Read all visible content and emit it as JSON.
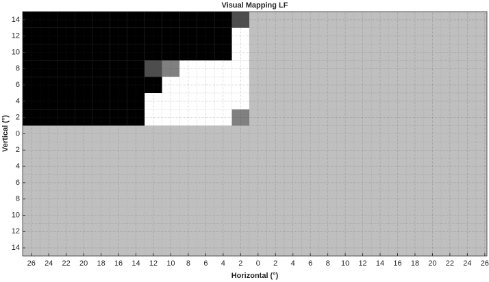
{
  "chart_data": {
    "type": "heatmap",
    "title": "Visual Mapping LF",
    "x_label": "Horizontal (°)",
    "y_label": "Vertical (°)",
    "x": [
      -26,
      -24,
      -22,
      -20,
      -18,
      -16,
      -14,
      -12,
      -10,
      -8,
      -6,
      -4,
      -2,
      0,
      2,
      4,
      6,
      8,
      10,
      12,
      14,
      16,
      18,
      20,
      22,
      24,
      26
    ],
    "y": [
      14,
      12,
      10,
      8,
      6,
      4,
      2,
      0,
      -2,
      -4,
      -6,
      -8,
      -10,
      -12,
      -14
    ],
    "colormap": "gray",
    "values": [
      [
        0,
        0,
        0,
        0,
        0,
        0,
        0,
        0,
        0,
        0,
        0,
        0,
        0.3,
        0.75,
        0.75,
        0.75,
        0.75,
        0.75,
        0.75,
        0.75,
        0.75,
        0.75,
        0.75,
        0.75,
        0.75,
        0.75,
        0.75
      ],
      [
        0,
        0,
        0,
        0,
        0,
        0,
        0,
        0,
        0,
        0,
        0,
        0,
        1,
        0.75,
        0.75,
        0.75,
        0.75,
        0.75,
        0.75,
        0.75,
        0.75,
        0.75,
        0.75,
        0.75,
        0.75,
        0.75,
        0.75
      ],
      [
        0,
        0,
        0,
        0,
        0,
        0,
        0,
        0,
        0,
        0,
        0,
        0,
        1,
        0.75,
        0.75,
        0.75,
        0.75,
        0.75,
        0.75,
        0.75,
        0.75,
        0.75,
        0.75,
        0.75,
        0.75,
        0.75,
        0.75
      ],
      [
        0,
        0,
        0,
        0,
        0,
        0,
        0,
        0.3,
        0.5,
        1,
        1,
        1,
        1,
        0.75,
        0.75,
        0.75,
        0.75,
        0.75,
        0.75,
        0.75,
        0.75,
        0.75,
        0.75,
        0.75,
        0.75,
        0.75,
        0.75
      ],
      [
        0,
        0,
        0,
        0,
        0,
        0,
        0,
        0,
        1,
        1,
        1,
        1,
        1,
        0.75,
        0.75,
        0.75,
        0.75,
        0.75,
        0.75,
        0.75,
        0.75,
        0.75,
        0.75,
        0.75,
        0.75,
        0.75,
        0.75
      ],
      [
        0,
        0,
        0,
        0,
        0,
        0,
        0,
        1,
        1,
        1,
        1,
        1,
        1,
        0.75,
        0.75,
        0.75,
        0.75,
        0.75,
        0.75,
        0.75,
        0.75,
        0.75,
        0.75,
        0.75,
        0.75,
        0.75,
        0.75
      ],
      [
        0,
        0,
        0,
        0,
        0,
        0,
        0,
        1,
        1,
        1,
        1,
        1,
        0.5,
        0.75,
        0.75,
        0.75,
        0.75,
        0.75,
        0.75,
        0.75,
        0.75,
        0.75,
        0.75,
        0.75,
        0.75,
        0.75,
        0.75
      ],
      [
        0.75,
        0.75,
        0.75,
        0.75,
        0.75,
        0.75,
        0.75,
        0.75,
        0.75,
        0.75,
        0.75,
        0.75,
        0.75,
        0.75,
        0.75,
        0.75,
        0.75,
        0.75,
        0.75,
        0.75,
        0.75,
        0.75,
        0.75,
        0.75,
        0.75,
        0.75,
        0.75
      ],
      [
        0.75,
        0.75,
        0.75,
        0.75,
        0.75,
        0.75,
        0.75,
        0.75,
        0.75,
        0.75,
        0.75,
        0.75,
        0.75,
        0.75,
        0.75,
        0.75,
        0.75,
        0.75,
        0.75,
        0.75,
        0.75,
        0.75,
        0.75,
        0.75,
        0.75,
        0.75,
        0.75
      ],
      [
        0.75,
        0.75,
        0.75,
        0.75,
        0.75,
        0.75,
        0.75,
        0.75,
        0.75,
        0.75,
        0.75,
        0.75,
        0.75,
        0.75,
        0.75,
        0.75,
        0.75,
        0.75,
        0.75,
        0.75,
        0.75,
        0.75,
        0.75,
        0.75,
        0.75,
        0.75,
        0.75
      ],
      [
        0.75,
        0.75,
        0.75,
        0.75,
        0.75,
        0.75,
        0.75,
        0.75,
        0.75,
        0.75,
        0.75,
        0.75,
        0.75,
        0.75,
        0.75,
        0.75,
        0.75,
        0.75,
        0.75,
        0.75,
        0.75,
        0.75,
        0.75,
        0.75,
        0.75,
        0.75,
        0.75
      ],
      [
        0.75,
        0.75,
        0.75,
        0.75,
        0.75,
        0.75,
        0.75,
        0.75,
        0.75,
        0.75,
        0.75,
        0.75,
        0.75,
        0.75,
        0.75,
        0.75,
        0.75,
        0.75,
        0.75,
        0.75,
        0.75,
        0.75,
        0.75,
        0.75,
        0.75,
        0.75,
        0.75
      ],
      [
        0.75,
        0.75,
        0.75,
        0.75,
        0.75,
        0.75,
        0.75,
        0.75,
        0.75,
        0.75,
        0.75,
        0.75,
        0.75,
        0.75,
        0.75,
        0.75,
        0.75,
        0.75,
        0.75,
        0.75,
        0.75,
        0.75,
        0.75,
        0.75,
        0.75,
        0.75,
        0.75
      ],
      [
        0.75,
        0.75,
        0.75,
        0.75,
        0.75,
        0.75,
        0.75,
        0.75,
        0.75,
        0.75,
        0.75,
        0.75,
        0.75,
        0.75,
        0.75,
        0.75,
        0.75,
        0.75,
        0.75,
        0.75,
        0.75,
        0.75,
        0.75,
        0.75,
        0.75,
        0.75,
        0.75
      ],
      [
        0.75,
        0.75,
        0.75,
        0.75,
        0.75,
        0.75,
        0.75,
        0.75,
        0.75,
        0.75,
        0.75,
        0.75,
        0.75,
        0.75,
        0.75,
        0.75,
        0.75,
        0.75,
        0.75,
        0.75,
        0.75,
        0.75,
        0.75,
        0.75,
        0.75,
        0.75,
        0.75
      ]
    ],
    "xlim": [
      -27,
      26.25
    ],
    "ylim": [
      -15,
      15
    ],
    "xticks": [
      {
        "value": -26,
        "label": "26"
      },
      {
        "value": -24,
        "label": "24"
      },
      {
        "value": -22,
        "label": "22"
      },
      {
        "value": -20,
        "label": "20"
      },
      {
        "value": -18,
        "label": "18"
      },
      {
        "value": -16,
        "label": "16"
      },
      {
        "value": -14,
        "label": "14"
      },
      {
        "value": -12,
        "label": "12"
      },
      {
        "value": -10,
        "label": "10"
      },
      {
        "value": -8,
        "label": "8"
      },
      {
        "value": -6,
        "label": "6"
      },
      {
        "value": -4,
        "label": "4"
      },
      {
        "value": -2,
        "label": "2"
      },
      0,
      2,
      4,
      6,
      8,
      10,
      12,
      14,
      16,
      18,
      20,
      22,
      24,
      26
    ],
    "yticks": [
      14,
      12,
      10,
      8,
      6,
      4,
      2,
      0,
      {
        "value": -2,
        "label": "2"
      },
      {
        "value": -4,
        "label": "4"
      },
      {
        "value": -6,
        "label": "6"
      },
      {
        "value": -8,
        "label": "8"
      },
      {
        "value": -10,
        "label": "10"
      },
      {
        "value": -12,
        "label": "12"
      },
      {
        "value": -14,
        "label": "14"
      }
    ],
    "grid": true
  }
}
